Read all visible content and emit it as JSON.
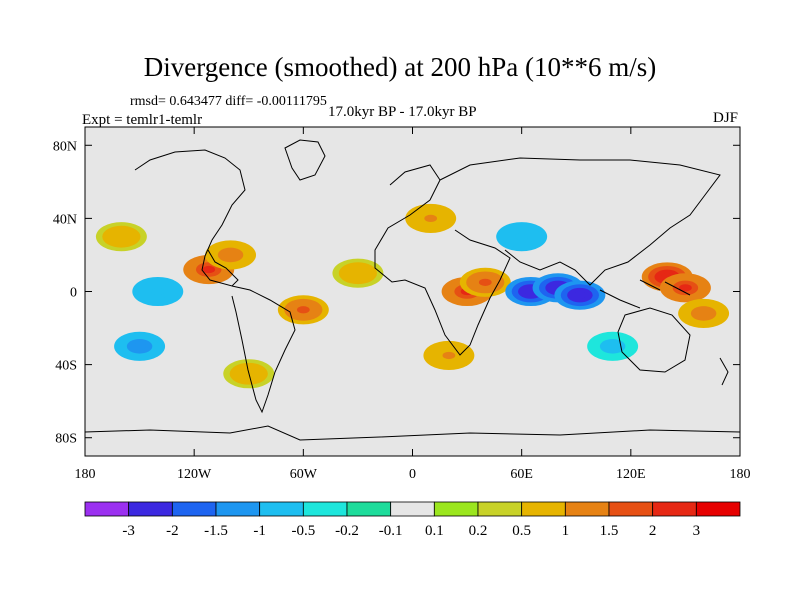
{
  "chart_data": {
    "type": "heatmap",
    "title": "Divergence (smoothed) at 200 hPa (10**6 m/s)",
    "stats": "rmsd= 0.643477 diff= -0.00111795",
    "experiment": "Expt = temlr1-temlr",
    "period": "17.0kyr BP - 17.0kyr BP",
    "season": "DJF",
    "x_tick_labels": [
      "180",
      "120W",
      "60W",
      "0",
      "60E",
      "120E",
      "180"
    ],
    "x_tick_values": [
      -180,
      -120,
      -60,
      0,
      60,
      120,
      180
    ],
    "y_tick_labels": [
      "80N",
      "40N",
      "0",
      "40S",
      "80S"
    ],
    "y_tick_values": [
      80,
      40,
      0,
      -40,
      -80
    ],
    "xlim": [
      -180,
      180
    ],
    "ylim": [
      -90,
      90
    ],
    "colorbar_labels": [
      "-3",
      "-2",
      "-1.5",
      "-1",
      "-0.5",
      "-0.2",
      "-0.1",
      "0.1",
      "0.2",
      "0.5",
      "1",
      "1.5",
      "2",
      "3"
    ],
    "colorbar_levels": [
      -3,
      -2,
      -1.5,
      -1,
      -0.5,
      -0.2,
      -0.1,
      0.1,
      0.2,
      0.5,
      1,
      1.5,
      2,
      3
    ],
    "colorbar_colors": [
      "#9b30f0",
      "#3c28e0",
      "#1e64f0",
      "#1e96f0",
      "#1ebef0",
      "#1ee6dc",
      "#1edc9b",
      "#e6e6e6",
      "#9be61e",
      "#c8d228",
      "#e6b400",
      "#e68214",
      "#e65014",
      "#e62814",
      "#e60000"
    ],
    "features": [
      {
        "lon": 30,
        "lat": 0,
        "value": 2.2
      },
      {
        "lon": 40,
        "lat": 5,
        "value": 1.6
      },
      {
        "lon": 65,
        "lat": 0,
        "value": -2.8
      },
      {
        "lon": 80,
        "lat": 2,
        "value": -2.5
      },
      {
        "lon": 92,
        "lat": -2,
        "value": -2.4
      },
      {
        "lon": 140,
        "lat": 8,
        "value": 2.8
      },
      {
        "lon": 150,
        "lat": 2,
        "value": 2.0
      },
      {
        "lon": 160,
        "lat": -12,
        "value": 1.2
      },
      {
        "lon": -112,
        "lat": 12,
        "value": 2.0
      },
      {
        "lon": -100,
        "lat": 20,
        "value": 1.2
      },
      {
        "lon": -140,
        "lat": 0,
        "value": -1.0
      },
      {
        "lon": -60,
        "lat": -10,
        "value": 1.5
      },
      {
        "lon": -30,
        "lat": 10,
        "value": 0.8
      },
      {
        "lon": 10,
        "lat": 40,
        "value": 1.0
      },
      {
        "lon": 60,
        "lat": 30,
        "value": -1.0
      },
      {
        "lon": -160,
        "lat": 30,
        "value": 0.9
      },
      {
        "lon": -150,
        "lat": -30,
        "value": -1.2
      },
      {
        "lon": -90,
        "lat": -45,
        "value": 0.9
      },
      {
        "lon": 20,
        "lat": -35,
        "value": 1.0
      },
      {
        "lon": 110,
        "lat": -30,
        "value": -0.7
      }
    ]
  }
}
